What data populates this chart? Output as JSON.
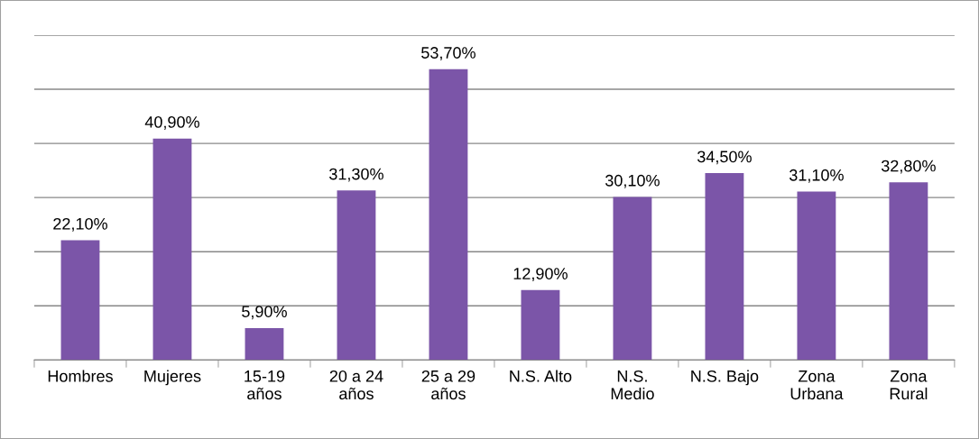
{
  "chart_data": {
    "type": "bar",
    "categories": [
      "Hombres",
      "Mujeres",
      "15-19 años",
      "20 a 24 años",
      "25 a 29 años",
      "N.S. Alto",
      "N.S. Medio",
      "N.S. Bajo",
      "Zona Urbana",
      "Zona Rural"
    ],
    "values": [
      22.1,
      40.9,
      5.9,
      31.3,
      53.7,
      12.9,
      30.1,
      34.5,
      31.1,
      32.8
    ],
    "value_labels": [
      "22,10%",
      "40,90%",
      "5,90%",
      "31,30%",
      "53,70%",
      "12,90%",
      "30,10%",
      "34,50%",
      "31,10%",
      "32,80%"
    ],
    "color": "#7b55a8",
    "ylim": [
      0,
      60
    ],
    "yticks": [
      {
        "value": 0,
        "label": null
      },
      {
        "value": 10,
        "label": null
      },
      {
        "value": 20,
        "label": null
      },
      {
        "value": 30,
        "label": null
      },
      {
        "value": 40,
        "label": null
      },
      {
        "value": 50,
        "label": null
      },
      {
        "value": 60,
        "label": null
      }
    ],
    "grid": "y",
    "tick_labels": "x"
  }
}
